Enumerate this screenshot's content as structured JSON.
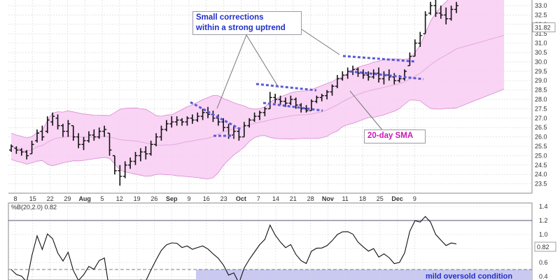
{
  "chart_data": [
    {
      "type": "ohlc-bar",
      "title": "",
      "x_tick_labels": [
        "8",
        "15",
        "22",
        "29",
        "Aug",
        "5",
        "12",
        "19",
        "26",
        "Sep",
        "9",
        "16",
        "23",
        "Oct",
        "7",
        "14",
        "21",
        "28",
        "Nov",
        "11",
        "18",
        "25",
        "Dec",
        "9"
      ],
      "y_tick_labels": [
        "23.5",
        "24.0",
        "24.5",
        "25.0",
        "25.5",
        "26.0",
        "26.5",
        "27.0",
        "27.5",
        "28.0",
        "28.5",
        "29.0",
        "29.5",
        "30.0",
        "30.5",
        "31.0",
        "31.5",
        "32.0",
        "32.5",
        "33.0"
      ],
      "ylim": [
        23.0,
        33.3
      ],
      "last_value_label": "31.82",
      "series": [
        {
          "style": "ohlc",
          "values": [
            {
              "h": 25.6,
              "l": 25.2,
              "o": 25.3,
              "c": 25.5
            },
            {
              "h": 25.5,
              "l": 25.1,
              "o": 25.4,
              "c": 25.3
            },
            {
              "h": 25.4,
              "l": 25.0,
              "o": 25.3,
              "c": 25.2
            },
            {
              "h": 25.3,
              "l": 24.8,
              "o": 25.2,
              "c": 25.0
            },
            {
              "h": 25.8,
              "l": 25.1,
              "o": 25.1,
              "c": 25.6
            },
            {
              "h": 26.4,
              "l": 25.7,
              "o": 25.8,
              "c": 26.2
            },
            {
              "h": 26.6,
              "l": 25.8,
              "o": 26.3,
              "c": 26.0
            },
            {
              "h": 27.1,
              "l": 26.2,
              "o": 26.3,
              "c": 26.9
            },
            {
              "h": 27.3,
              "l": 26.6,
              "o": 26.8,
              "c": 27.1
            },
            {
              "h": 27.2,
              "l": 26.4,
              "o": 27.0,
              "c": 26.6
            },
            {
              "h": 26.7,
              "l": 26.0,
              "o": 26.6,
              "c": 26.3
            },
            {
              "h": 26.9,
              "l": 26.0,
              "o": 26.3,
              "c": 26.7
            },
            {
              "h": 26.6,
              "l": 25.8,
              "o": 26.6,
              "c": 26.0
            },
            {
              "h": 26.2,
              "l": 25.4,
              "o": 26.0,
              "c": 25.6
            },
            {
              "h": 26.0,
              "l": 25.3,
              "o": 25.6,
              "c": 25.8
            },
            {
              "h": 26.3,
              "l": 25.7,
              "o": 25.8,
              "c": 26.1
            },
            {
              "h": 26.4,
              "l": 25.8,
              "o": 26.1,
              "c": 26.0
            },
            {
              "h": 26.5,
              "l": 25.9,
              "o": 26.0,
              "c": 26.3
            },
            {
              "h": 26.6,
              "l": 26.0,
              "o": 26.3,
              "c": 26.4
            },
            {
              "h": 26.2,
              "l": 25.0,
              "o": 26.2,
              "c": 25.3
            },
            {
              "h": 25.0,
              "l": 24.0,
              "o": 25.0,
              "c": 24.2
            },
            {
              "h": 24.5,
              "l": 23.4,
              "o": 24.2,
              "c": 23.9
            },
            {
              "h": 24.7,
              "l": 23.8,
              "o": 23.9,
              "c": 24.5
            },
            {
              "h": 24.9,
              "l": 24.3,
              "o": 24.5,
              "c": 24.7
            },
            {
              "h": 25.2,
              "l": 24.5,
              "o": 24.7,
              "c": 25.0
            },
            {
              "h": 25.4,
              "l": 24.7,
              "o": 25.0,
              "c": 25.2
            },
            {
              "h": 25.5,
              "l": 24.8,
              "o": 25.2,
              "c": 25.1
            },
            {
              "h": 25.8,
              "l": 25.0,
              "o": 25.1,
              "c": 25.6
            },
            {
              "h": 26.2,
              "l": 25.5,
              "o": 25.6,
              "c": 26.0
            },
            {
              "h": 26.6,
              "l": 25.8,
              "o": 26.0,
              "c": 26.4
            },
            {
              "h": 26.9,
              "l": 26.3,
              "o": 26.4,
              "c": 26.7
            },
            {
              "h": 27.1,
              "l": 26.5,
              "o": 26.7,
              "c": 26.8
            },
            {
              "h": 27.1,
              "l": 26.6,
              "o": 26.8,
              "c": 26.9
            },
            {
              "h": 27.0,
              "l": 26.6,
              "o": 26.9,
              "c": 26.8
            },
            {
              "h": 27.1,
              "l": 26.6,
              "o": 26.8,
              "c": 27.0
            },
            {
              "h": 27.2,
              "l": 26.7,
              "o": 27.0,
              "c": 26.9
            },
            {
              "h": 27.3,
              "l": 26.8,
              "o": 26.9,
              "c": 27.1
            },
            {
              "h": 27.5,
              "l": 26.9,
              "o": 27.1,
              "c": 27.3
            },
            {
              "h": 27.6,
              "l": 27.0,
              "o": 27.3,
              "c": 27.2
            },
            {
              "h": 27.4,
              "l": 26.8,
              "o": 27.2,
              "c": 27.0
            },
            {
              "h": 27.2,
              "l": 26.6,
              "o": 27.0,
              "c": 26.8
            },
            {
              "h": 27.0,
              "l": 26.3,
              "o": 26.8,
              "c": 26.5
            },
            {
              "h": 26.7,
              "l": 25.9,
              "o": 26.5,
              "c": 26.1
            },
            {
              "h": 26.6,
              "l": 25.9,
              "o": 26.1,
              "c": 26.3
            },
            {
              "h": 26.5,
              "l": 25.8,
              "o": 26.3,
              "c": 26.0
            },
            {
              "h": 26.8,
              "l": 26.0,
              "o": 26.0,
              "c": 26.6
            },
            {
              "h": 27.0,
              "l": 26.5,
              "o": 26.6,
              "c": 26.9
            },
            {
              "h": 27.3,
              "l": 26.8,
              "o": 26.9,
              "c": 27.1
            },
            {
              "h": 27.4,
              "l": 26.9,
              "o": 27.1,
              "c": 27.3
            },
            {
              "h": 27.6,
              "l": 27.1,
              "o": 27.3,
              "c": 27.5
            },
            {
              "h": 28.4,
              "l": 27.5,
              "o": 27.5,
              "c": 28.1
            },
            {
              "h": 28.3,
              "l": 27.8,
              "o": 28.1,
              "c": 28.0
            },
            {
              "h": 28.2,
              "l": 27.7,
              "o": 28.0,
              "c": 27.9
            },
            {
              "h": 28.1,
              "l": 27.6,
              "o": 27.9,
              "c": 27.8
            },
            {
              "h": 28.2,
              "l": 27.7,
              "o": 27.8,
              "c": 28.0
            },
            {
              "h": 28.1,
              "l": 27.5,
              "o": 28.0,
              "c": 27.7
            },
            {
              "h": 27.8,
              "l": 27.3,
              "o": 27.7,
              "c": 27.5
            },
            {
              "h": 27.7,
              "l": 27.3,
              "o": 27.5,
              "c": 27.4
            },
            {
              "h": 28.0,
              "l": 27.4,
              "o": 27.4,
              "c": 27.9
            },
            {
              "h": 28.2,
              "l": 27.8,
              "o": 27.9,
              "c": 28.1
            },
            {
              "h": 28.3,
              "l": 27.9,
              "o": 28.1,
              "c": 28.2
            },
            {
              "h": 28.5,
              "l": 28.0,
              "o": 28.2,
              "c": 28.4
            },
            {
              "h": 28.8,
              "l": 28.2,
              "o": 28.4,
              "c": 28.7
            },
            {
              "h": 29.3,
              "l": 28.6,
              "o": 28.7,
              "c": 29.1
            },
            {
              "h": 29.5,
              "l": 29.0,
              "o": 29.1,
              "c": 29.3
            },
            {
              "h": 29.7,
              "l": 29.1,
              "o": 29.3,
              "c": 29.5
            },
            {
              "h": 29.8,
              "l": 29.3,
              "o": 29.5,
              "c": 29.6
            },
            {
              "h": 29.7,
              "l": 29.2,
              "o": 29.6,
              "c": 29.4
            },
            {
              "h": 29.6,
              "l": 29.1,
              "o": 29.4,
              "c": 29.3
            },
            {
              "h": 29.5,
              "l": 29.0,
              "o": 29.3,
              "c": 29.2
            },
            {
              "h": 29.6,
              "l": 29.1,
              "o": 29.2,
              "c": 29.4
            },
            {
              "h": 29.7,
              "l": 28.9,
              "o": 29.4,
              "c": 29.1
            },
            {
              "h": 29.5,
              "l": 28.8,
              "o": 29.1,
              "c": 29.3
            },
            {
              "h": 29.6,
              "l": 29.0,
              "o": 29.3,
              "c": 29.2
            },
            {
              "h": 29.4,
              "l": 28.8,
              "o": 29.2,
              "c": 29.0
            },
            {
              "h": 29.3,
              "l": 28.9,
              "o": 29.0,
              "c": 29.1
            },
            {
              "h": 29.6,
              "l": 29.0,
              "o": 29.1,
              "c": 29.5
            },
            {
              "h": 30.5,
              "l": 29.8,
              "o": 29.8,
              "c": 30.3
            },
            {
              "h": 31.2,
              "l": 30.3,
              "o": 30.3,
              "c": 31.0
            },
            {
              "h": 31.6,
              "l": 30.8,
              "o": 31.0,
              "c": 31.4
            },
            {
              "h": 32.7,
              "l": 31.5,
              "o": 31.5,
              "c": 32.5
            },
            {
              "h": 33.2,
              "l": 32.5,
              "o": 32.6,
              "c": 33.0
            },
            {
              "h": 33.3,
              "l": 32.4,
              "o": 33.0,
              "c": 32.6
            },
            {
              "h": 33.0,
              "l": 32.3,
              "o": 32.6,
              "c": 32.5
            },
            {
              "h": 32.9,
              "l": 32.0,
              "o": 32.5,
              "c": 32.3
            },
            {
              "h": 33.0,
              "l": 32.2,
              "o": 32.3,
              "c": 32.8
            },
            {
              "h": 33.2,
              "l": 32.6,
              "o": 32.8,
              "c": 33.0
            }
          ]
        },
        {
          "name": "20-day SMA",
          "style": "line"
        },
        {
          "style": "band"
        }
      ],
      "annotations": [
        "Small corrections",
        "within a strong uptrend",
        "20-day SMA"
      ]
    },
    {
      "type": "line",
      "label": "%B(20,2.0) 0.82",
      "y_tick_labels": [
        "0.4",
        "0.6",
        "0.8",
        "1.0",
        "1.2",
        "1.4"
      ],
      "ylim": [
        0.35,
        1.45
      ],
      "reference_lines": [
        1.2,
        0.5
      ],
      "last_value_label": "0.82",
      "annotation": "mild oversold condition"
    }
  ],
  "colors": {
    "band_fill": "#f8ccf3",
    "band_edge": "#d88ad0",
    "sma": "#e6a8dd",
    "price_bar": "#111111",
    "dash": "#5a5ad6",
    "annotation_text": "#2030c8",
    "sma_label": "#c81ab4",
    "oversold_fill": "#c9c9f2",
    "grid": "#d6d6d6"
  }
}
